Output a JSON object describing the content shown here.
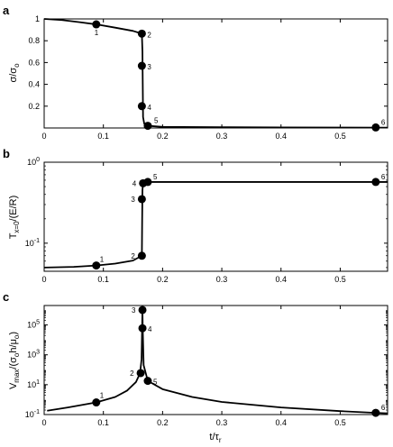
{
  "chart_data": [
    {
      "panel": "a",
      "type": "line",
      "x_ticks": [
        "0",
        "0.1",
        "0.2",
        "0.3",
        "0.4",
        "0.5"
      ],
      "y_ticks": [
        "1",
        "0.8",
        "0.6",
        "0.4",
        "0.2"
      ],
      "xlim": [
        0,
        0.58
      ],
      "ylim": [
        0,
        1
      ],
      "ylabel": "σ/σ₀",
      "curve": [
        [
          0,
          1.0
        ],
        [
          0.03,
          0.99
        ],
        [
          0.06,
          0.97
        ],
        [
          0.088,
          0.95
        ],
        [
          0.12,
          0.92
        ],
        [
          0.15,
          0.89
        ],
        [
          0.165,
          0.865
        ],
        [
          0.166,
          0.7
        ],
        [
          0.1665,
          0.4
        ],
        [
          0.167,
          0.1
        ],
        [
          0.169,
          0.04
        ],
        [
          0.175,
          0.02
        ],
        [
          0.2,
          0.01
        ],
        [
          0.3,
          0.007
        ],
        [
          0.4,
          0.005
        ],
        [
          0.5,
          0.004
        ],
        [
          0.58,
          0.003
        ]
      ],
      "points": [
        {
          "label": "1",
          "x": 0.088,
          "y": 0.95
        },
        {
          "label": "2",
          "x": 0.165,
          "y": 0.865
        },
        {
          "label": "3",
          "x": 0.165,
          "y": 0.57
        },
        {
          "label": "4",
          "x": 0.165,
          "y": 0.2
        },
        {
          "label": "5",
          "x": 0.175,
          "y": 0.02
        },
        {
          "label": "6",
          "x": 0.56,
          "y": 0.005
        }
      ]
    },
    {
      "panel": "b",
      "type": "line",
      "yscale": "log",
      "x_ticks": [
        "0",
        "0.1",
        "0.2",
        "0.3",
        "0.4",
        "0.5"
      ],
      "y_ticks": [
        "10^0",
        "10^-1"
      ],
      "xlim": [
        0,
        0.58
      ],
      "ylim": [
        0.045,
        1
      ],
      "ylabel": "T_{x=0}/(E/R)",
      "curve": [
        [
          0,
          0.05
        ],
        [
          0.05,
          0.051
        ],
        [
          0.088,
          0.053
        ],
        [
          0.12,
          0.056
        ],
        [
          0.15,
          0.061
        ],
        [
          0.165,
          0.07
        ],
        [
          0.1655,
          0.2
        ],
        [
          0.166,
          0.45
        ],
        [
          0.167,
          0.55
        ],
        [
          0.175,
          0.57
        ],
        [
          0.58,
          0.57
        ]
      ],
      "points": [
        {
          "label": "1",
          "x": 0.088,
          "y": 0.053
        },
        {
          "label": "2",
          "x": 0.165,
          "y": 0.07
        },
        {
          "label": "3",
          "x": 0.165,
          "y": 0.35
        },
        {
          "label": "4",
          "x": 0.167,
          "y": 0.55
        },
        {
          "label": "5",
          "x": 0.175,
          "y": 0.57
        },
        {
          "label": "6",
          "x": 0.56,
          "y": 0.57
        }
      ]
    },
    {
      "panel": "c",
      "type": "line",
      "yscale": "log",
      "x_ticks": [
        "0",
        "0.1",
        "0.2",
        "0.3",
        "0.4",
        "0.5"
      ],
      "y_ticks": [
        "10^5",
        "10^3",
        "10^1",
        "10^-1"
      ],
      "xlim": [
        0,
        0.58
      ],
      "ylim": [
        0.1,
        2000000
      ],
      "xlabel": "t/τ_r",
      "ylabel": "V_max/(σ₀h/μ₀)",
      "curve_rise": [
        [
          0.005,
          0.18
        ],
        [
          0.04,
          0.3
        ],
        [
          0.088,
          0.65
        ],
        [
          0.12,
          1.5
        ],
        [
          0.14,
          4
        ],
        [
          0.155,
          15
        ],
        [
          0.162,
          60
        ],
        [
          0.1645,
          500
        ],
        [
          0.1655,
          100000
        ],
        [
          0.166,
          1000000
        ]
      ],
      "curve_decay": [
        [
          0.166,
          1000000
        ],
        [
          0.1665,
          50000
        ],
        [
          0.168,
          200
        ],
        [
          0.175,
          18
        ],
        [
          0.2,
          5
        ],
        [
          0.25,
          1.5
        ],
        [
          0.3,
          0.7
        ],
        [
          0.4,
          0.3
        ],
        [
          0.5,
          0.17
        ],
        [
          0.56,
          0.13
        ],
        [
          0.58,
          0.12
        ]
      ],
      "points": [
        {
          "label": "1",
          "x": 0.088,
          "y": 0.65
        },
        {
          "label": "2",
          "x": 0.163,
          "y": 60
        },
        {
          "label": "3",
          "x": 0.166,
          "y": 1000000
        },
        {
          "label": "4",
          "x": 0.166,
          "y": 60000
        },
        {
          "label": "5",
          "x": 0.175,
          "y": 18
        },
        {
          "label": "6",
          "x": 0.56,
          "y": 0.13
        }
      ]
    }
  ]
}
